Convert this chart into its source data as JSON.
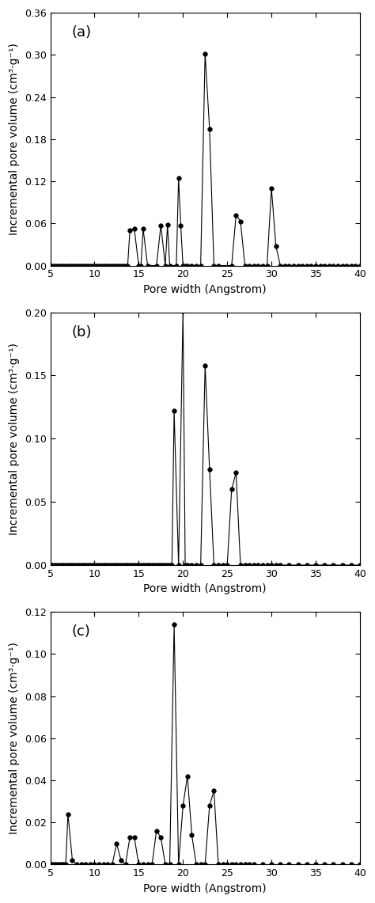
{
  "panel_a": {
    "label": "(a)",
    "ylim": [
      0,
      0.36
    ],
    "yticks": [
      0.0,
      0.06,
      0.12,
      0.18,
      0.24,
      0.3,
      0.36
    ],
    "x": [
      5.0,
      5.25,
      5.5,
      5.75,
      6.0,
      6.25,
      6.5,
      6.75,
      7.0,
      7.25,
      7.5,
      7.75,
      8.0,
      8.25,
      8.5,
      8.75,
      9.0,
      9.25,
      9.5,
      9.75,
      10.0,
      10.25,
      10.5,
      10.75,
      11.0,
      11.25,
      11.5,
      11.75,
      12.0,
      12.25,
      12.5,
      12.75,
      13.0,
      13.25,
      13.5,
      13.75,
      14.0,
      14.5,
      15.0,
      15.25,
      15.5,
      16.0,
      17.0,
      17.5,
      18.0,
      18.25,
      18.5,
      19.25,
      19.5,
      19.75,
      20.0,
      20.25,
      20.5,
      21.0,
      21.5,
      22.0,
      22.5,
      23.0,
      23.5,
      24.0,
      25.5,
      26.0,
      26.5,
      27.0,
      27.5,
      28.0,
      28.5,
      29.0,
      29.5,
      30.0,
      30.5,
      31.0,
      31.5,
      32.0,
      32.5,
      33.0,
      33.5,
      34.0,
      34.5,
      35.0,
      35.5,
      36.0,
      36.5,
      37.0,
      37.5,
      38.0,
      38.5,
      39.0,
      39.5,
      40.0
    ],
    "y": [
      0.0,
      0.0,
      0.0,
      0.0,
      0.0,
      0.0,
      0.0,
      0.0,
      0.0,
      0.0,
      0.0,
      0.0,
      0.0,
      0.0,
      0.0,
      0.0,
      0.0,
      0.0,
      0.0,
      0.0,
      0.0,
      0.0,
      0.0,
      0.0,
      0.0,
      0.0,
      0.0,
      0.0,
      0.0,
      0.0,
      0.0,
      0.0,
      0.0,
      0.0,
      0.0,
      0.0,
      0.05,
      0.052,
      0.0,
      0.0,
      0.052,
      0.0,
      0.0,
      0.057,
      0.0,
      0.058,
      0.0,
      0.0,
      0.125,
      0.057,
      0.0,
      0.0,
      0.0,
      0.0,
      0.0,
      0.0,
      0.302,
      0.195,
      0.0,
      0.0,
      0.0,
      0.072,
      0.063,
      0.0,
      0.0,
      0.0,
      0.0,
      0.0,
      0.0,
      0.11,
      0.028,
      0.0,
      0.0,
      0.0,
      0.0,
      0.0,
      0.0,
      0.0,
      0.0,
      0.0,
      0.0,
      0.0,
      0.0,
      0.0,
      0.0,
      0.0,
      0.0,
      0.0,
      0.0,
      0.0
    ]
  },
  "panel_b": {
    "label": "(b)",
    "ylim": [
      0,
      0.2
    ],
    "yticks": [
      0.0,
      0.05,
      0.1,
      0.15,
      0.2
    ],
    "x": [
      5.0,
      5.25,
      5.5,
      5.75,
      6.0,
      6.25,
      6.5,
      6.75,
      7.0,
      7.25,
      7.5,
      7.75,
      8.0,
      8.25,
      8.5,
      8.75,
      9.0,
      9.25,
      9.5,
      9.75,
      10.0,
      10.25,
      10.5,
      10.75,
      11.0,
      11.25,
      11.5,
      11.75,
      12.0,
      12.25,
      12.5,
      12.75,
      13.0,
      13.25,
      13.5,
      13.75,
      14.0,
      14.25,
      14.5,
      14.75,
      15.0,
      15.25,
      15.5,
      15.75,
      16.0,
      16.25,
      16.5,
      16.75,
      17.0,
      17.25,
      17.5,
      17.75,
      18.0,
      18.25,
      18.5,
      18.75,
      19.0,
      19.5,
      20.0,
      20.25,
      20.5,
      21.0,
      21.5,
      22.0,
      22.5,
      23.0,
      23.5,
      24.0,
      24.5,
      25.0,
      25.5,
      26.0,
      26.5,
      27.0,
      27.5,
      28.0,
      28.5,
      29.0,
      29.5,
      30.0,
      30.5,
      31.0,
      32.0,
      33.0,
      34.0,
      35.0,
      36.0,
      37.0,
      38.0,
      39.0,
      40.0
    ],
    "y": [
      0.0,
      0.0,
      0.0,
      0.0,
      0.0,
      0.0,
      0.0,
      0.0,
      0.0,
      0.0,
      0.0,
      0.0,
      0.0,
      0.0,
      0.0,
      0.0,
      0.0,
      0.0,
      0.0,
      0.0,
      0.0,
      0.0,
      0.0,
      0.0,
      0.0,
      0.0,
      0.0,
      0.0,
      0.0,
      0.0,
      0.0,
      0.0,
      0.0,
      0.0,
      0.0,
      0.0,
      0.0,
      0.0,
      0.0,
      0.0,
      0.0,
      0.0,
      0.0,
      0.0,
      0.0,
      0.0,
      0.0,
      0.0,
      0.0,
      0.0,
      0.0,
      0.0,
      0.0,
      0.0,
      0.0,
      0.0,
      0.122,
      0.0,
      0.201,
      0.0,
      0.0,
      0.0,
      0.0,
      0.0,
      0.158,
      0.076,
      0.0,
      0.0,
      0.0,
      0.0,
      0.06,
      0.073,
      0.0,
      0.0,
      0.0,
      0.0,
      0.0,
      0.0,
      0.0,
      0.0,
      0.0,
      0.0,
      0.0,
      0.0,
      0.0,
      0.0,
      0.0,
      0.0,
      0.0,
      0.0,
      0.0
    ]
  },
  "panel_c": {
    "label": "(c)",
    "ylim": [
      0,
      0.12
    ],
    "yticks": [
      0.0,
      0.02,
      0.04,
      0.06,
      0.08,
      0.1,
      0.12
    ],
    "x": [
      5.0,
      5.25,
      5.5,
      5.75,
      6.0,
      6.25,
      6.5,
      6.75,
      7.0,
      7.5,
      8.0,
      8.5,
      9.0,
      9.5,
      10.0,
      10.5,
      11.0,
      11.5,
      12.0,
      12.5,
      13.0,
      13.5,
      14.0,
      14.5,
      15.0,
      15.5,
      16.0,
      16.5,
      17.0,
      17.5,
      18.0,
      18.5,
      19.0,
      19.5,
      20.0,
      20.5,
      21.0,
      21.5,
      22.0,
      22.5,
      23.0,
      23.5,
      24.0,
      24.5,
      25.0,
      25.5,
      26.0,
      26.5,
      27.0,
      27.5,
      28.0,
      29.0,
      30.0,
      31.0,
      32.0,
      33.0,
      34.0,
      35.0,
      36.0,
      37.0,
      38.0,
      39.0,
      40.0
    ],
    "y": [
      0.0,
      0.0,
      0.0,
      0.0,
      0.0,
      0.0,
      0.0,
      0.0,
      0.024,
      0.002,
      0.0,
      0.0,
      0.0,
      0.0,
      0.0,
      0.0,
      0.0,
      0.0,
      0.0,
      0.01,
      0.002,
      0.0,
      0.013,
      0.013,
      0.0,
      0.0,
      0.0,
      0.0,
      0.016,
      0.013,
      0.0,
      0.0,
      0.114,
      0.0,
      0.028,
      0.042,
      0.014,
      0.0,
      0.0,
      0.0,
      0.028,
      0.035,
      0.0,
      0.0,
      0.0,
      0.0,
      0.0,
      0.0,
      0.0,
      0.0,
      0.0,
      0.0,
      0.0,
      0.0,
      0.0,
      0.0,
      0.0,
      0.0,
      0.0,
      0.0,
      0.0,
      0.0,
      0.0
    ]
  },
  "xlabel": "Pore width (Angstrom)",
  "ylabel": "Incremental pore volume (cm³·g⁻¹)",
  "xlim": [
    5,
    40
  ],
  "xticks": [
    5,
    10,
    15,
    20,
    25,
    30,
    35,
    40
  ],
  "line_color": "#000000",
  "marker": "o",
  "markersize": 4,
  "linewidth": 0.8,
  "label_fontsize": 10,
  "tick_fontsize": 9,
  "panel_label_fontsize": 13
}
